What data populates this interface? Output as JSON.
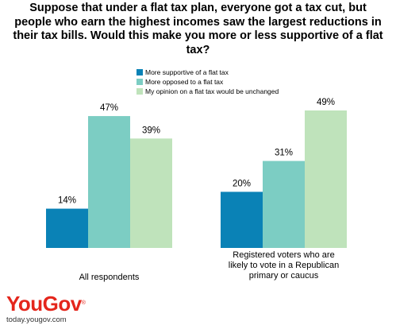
{
  "chart_data": {
    "type": "bar",
    "title": "Suppose that under a flat tax plan, everyone got a tax cut, but people who earn the highest incomes saw the largest reductions in their tax bills.  Would this make you more or less supportive of a flat tax?",
    "categories": [
      [
        "All respondents"
      ],
      [
        "Registered voters who are",
        "likely to vote in a Republican",
        "primary or caucus"
      ]
    ],
    "series": [
      {
        "name": "More supportive of a flat tax",
        "color": "#0a82b6",
        "values": [
          14,
          20
        ],
        "labels": [
          "14%",
          "20%"
        ]
      },
      {
        "name": "More opposed to a flat tax",
        "color": "#7ccdc3",
        "values": [
          47,
          31
        ],
        "labels": [
          "47%",
          "31%"
        ]
      },
      {
        "name": "My opinion on a flat tax would be unchanged",
        "color": "#bfe3bb",
        "values": [
          39,
          49
        ],
        "labels": [
          "39%",
          "49%"
        ]
      }
    ],
    "ylim": [
      0,
      49
    ],
    "grid": false,
    "legend": "top-center"
  },
  "brand": {
    "logo_text": "YouGov",
    "logo_mark": "®",
    "website": "today.yougov.com",
    "color": "#e4261c"
  }
}
